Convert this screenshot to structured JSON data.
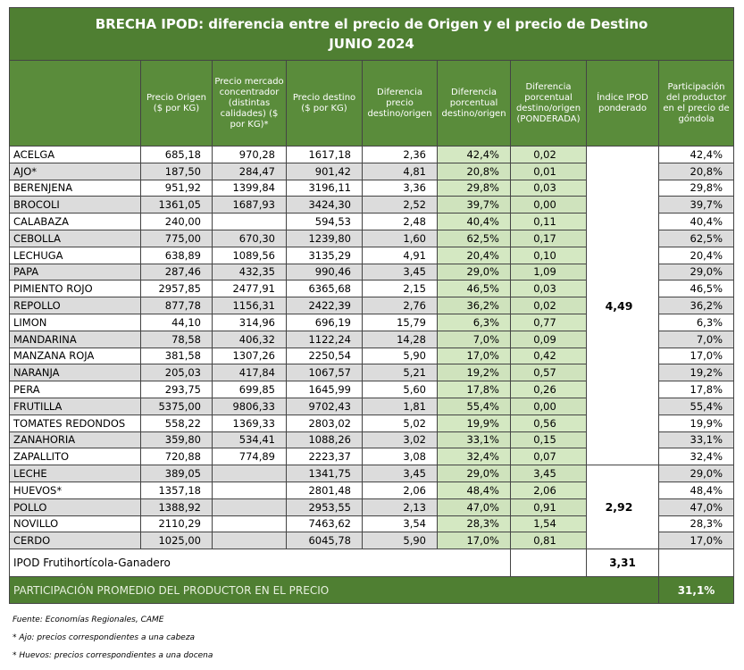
{
  "header": {
    "title": "BRECHA IPOD: diferencia entre el precio de Origen y el precio de Destino",
    "subtitle": "JUNIO 2024"
  },
  "table": {
    "columns": [
      "Precio Origen ($ por KG)",
      "Precio mercado concentrador (distintas calidades) ($ por KG)*",
      "Precio destino ($ por KG)",
      "Diferencia precio destino/origen",
      "Diferencia porcentual destino/origen",
      "Diferencia porcentual destino/origen (PONDERADA)",
      "Índice IPOD ponderado",
      "Participación del productor en el precio de góndola"
    ],
    "groups": [
      {
        "ipod": "4,49",
        "rows": [
          [
            "ACELGA",
            "685,18",
            "970,28",
            "1617,18",
            "2,36",
            "42,4%",
            "0,02",
            "42,4%"
          ],
          [
            "AJO*",
            "187,50",
            "284,47",
            "901,42",
            "4,81",
            "20,8%",
            "0,01",
            "20,8%"
          ],
          [
            "BERENJENA",
            "951,92",
            "1399,84",
            "3196,11",
            "3,36",
            "29,8%",
            "0,03",
            "29,8%"
          ],
          [
            "BROCOLI",
            "1361,05",
            "1687,93",
            "3424,30",
            "2,52",
            "39,7%",
            "0,00",
            "39,7%"
          ],
          [
            "CALABAZA",
            "240,00",
            null,
            "594,53",
            "2,48",
            "40,4%",
            "0,11",
            "40,4%"
          ],
          [
            "CEBOLLA",
            "775,00",
            "670,30",
            "1239,80",
            "1,60",
            "62,5%",
            "0,17",
            "62,5%"
          ],
          [
            "LECHUGA",
            "638,89",
            "1089,56",
            "3135,29",
            "4,91",
            "20,4%",
            "0,10",
            "20,4%"
          ],
          [
            "PAPA",
            "287,46",
            "432,35",
            "990,46",
            "3,45",
            "29,0%",
            "1,09",
            "29,0%"
          ],
          [
            "PIMIENTO ROJO",
            "2957,85",
            "2477,91",
            "6365,68",
            "2,15",
            "46,5%",
            "0,03",
            "46,5%"
          ],
          [
            "REPOLLO",
            "877,78",
            "1156,31",
            "2422,39",
            "2,76",
            "36,2%",
            "0,02",
            "36,2%"
          ],
          [
            "LIMON",
            "44,10",
            "314,96",
            "696,19",
            "15,79",
            "6,3%",
            "0,77",
            "6,3%"
          ],
          [
            "MANDARINA",
            "78,58",
            "406,32",
            "1122,24",
            "14,28",
            "7,0%",
            "0,09",
            "7,0%"
          ],
          [
            "MANZANA ROJA",
            "381,58",
            "1307,26",
            "2250,54",
            "5,90",
            "17,0%",
            "0,42",
            "17,0%"
          ],
          [
            "NARANJA",
            "205,03",
            "417,84",
            "1067,57",
            "5,21",
            "19,2%",
            "0,57",
            "19,2%"
          ],
          [
            "PERA",
            "293,75",
            "699,85",
            "1645,99",
            "5,60",
            "17,8%",
            "0,26",
            "17,8%"
          ],
          [
            "FRUTILLA",
            "5375,00",
            "9806,33",
            "9702,43",
            "1,81",
            "55,4%",
            "0,00",
            "55,4%"
          ],
          [
            "TOMATES REDONDOS",
            "558,22",
            "1369,33",
            "2803,02",
            "5,02",
            "19,9%",
            "0,56",
            "19,9%"
          ],
          [
            "ZANAHORIA",
            "359,80",
            "534,41",
            "1088,26",
            "3,02",
            "33,1%",
            "0,15",
            "33,1%"
          ],
          [
            "ZAPALLITO",
            "720,88",
            "774,89",
            "2223,37",
            "3,08",
            "32,4%",
            "0,07",
            "32,4%"
          ]
        ]
      },
      {
        "ipod": "2,92",
        "rows": [
          [
            "LECHE",
            "389,05",
            null,
            "1341,75",
            "3,45",
            "29,0%",
            "3,45",
            "29,0%"
          ],
          [
            "HUEVOS*",
            "1357,18",
            null,
            "2801,48",
            "2,06",
            "48,4%",
            "2,06",
            "48,4%"
          ],
          [
            "POLLO",
            "1388,92",
            null,
            "2953,55",
            "2,13",
            "47,0%",
            "0,91",
            "47,0%"
          ],
          [
            "NOVILLO",
            "2110,29",
            null,
            "7463,62",
            "3,54",
            "28,3%",
            "1,54",
            "28,3%"
          ],
          [
            "CERDO",
            "1025,00",
            null,
            "6045,78",
            "5,90",
            "17,0%",
            "0,81",
            "17,0%"
          ]
        ]
      }
    ],
    "total": {
      "label": "IPOD Frutihortícola-Ganadero",
      "value": "3,31"
    },
    "average": {
      "label": "PARTICIPACIÓN PROMEDIO DEL PRODUCTOR EN EL PRECIO",
      "value": "31,1%"
    }
  },
  "notes": [
    "Fuente: Economías Regionales, CAME",
    "* Ajo: precios correspondientes a una cabeza",
    "* Huevos: precios correspondientes a una docena"
  ]
}
